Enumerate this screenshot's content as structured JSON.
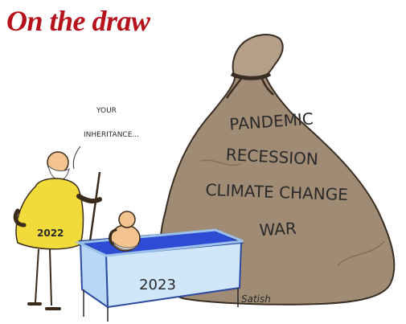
{
  "header": {
    "title": "On the draw"
  },
  "cartoon": {
    "speech": "YOUR INHERITANCE...",
    "sack_words": [
      "PANDEMIC",
      "RECESSION",
      "CLIMATE CHANGE",
      "WAR"
    ],
    "old_man_year": "2022",
    "tub_year": "2023",
    "signature": "Satish"
  },
  "colors": {
    "title_red": "#b5121b",
    "sack_brown": "#a08b74",
    "coat_yellow": "#f0db3a",
    "water_blue": "#2d4bd3",
    "tub_light": "#cfe6fb"
  }
}
